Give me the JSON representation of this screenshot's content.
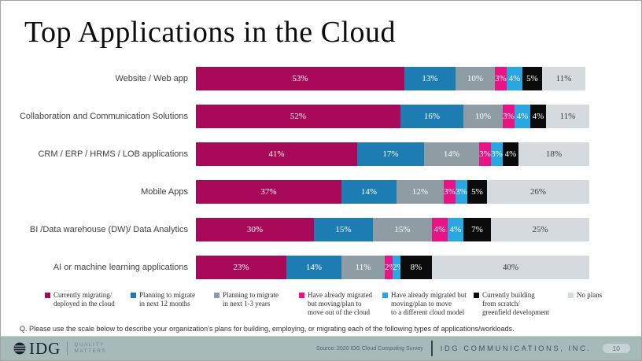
{
  "title": "Top Applications in the Cloud",
  "chart_data": {
    "type": "bar",
    "orientation": "horizontal",
    "stacked": true,
    "value_suffix": "%",
    "xlim": [
      0,
      100
    ],
    "grid": false,
    "legend_position": "bottom",
    "categories": [
      "Website / Web app",
      "Collaboration and Communication Solutions",
      "CRM / ERP / HRMS / LOB applications",
      "Mobile Apps",
      "BI /Data warehouse (DW)/ Data Analytics",
      "AI or machine learning applications"
    ],
    "series": [
      {
        "name": "Currently migrating/ deployed in the cloud",
        "color": "#a80959",
        "label_color": "#ffffff",
        "values": [
          53,
          52,
          41,
          37,
          30,
          23
        ]
      },
      {
        "name": "Planning to migrate in next 12 months",
        "color": "#1d7db2",
        "label_color": "#ffffff",
        "values": [
          13,
          16,
          17,
          14,
          15,
          14
        ]
      },
      {
        "name": "Planning to migrate in next 1-3 years",
        "color": "#8e9ca4",
        "label_color": "#ffffff",
        "values": [
          10,
          10,
          14,
          12,
          15,
          11
        ]
      },
      {
        "name": "Have already migrated but moving/plan to move out of the cloud",
        "color": "#e81384",
        "label_color": "#ffffff",
        "values": [
          3,
          3,
          3,
          3,
          4,
          2
        ]
      },
      {
        "name": "Have already migrated but moving/plan to move to a different cloud model",
        "color": "#2aa6e0",
        "label_color": "#ffffff",
        "values": [
          4,
          4,
          3,
          3,
          4,
          2
        ]
      },
      {
        "name": "Currently building from scratch/ greenfield development",
        "color": "#0b0b0b",
        "label_color": "#ffffff",
        "values": [
          5,
          4,
          4,
          5,
          7,
          8
        ]
      },
      {
        "name": "No plans",
        "color": "#d4dadd",
        "label_color": "#3d3d3d",
        "values": [
          11,
          11,
          18,
          26,
          25,
          40
        ]
      }
    ]
  },
  "legend": {
    "items": [
      {
        "lines": [
          "Currently migrating/",
          "deployed in the cloud"
        ],
        "color": "#a80959"
      },
      {
        "lines": [
          "Planning to migrate",
          "in next 12 months"
        ],
        "color": "#1d7db2"
      },
      {
        "lines": [
          "Planning to migrate",
          "in next 1-3 years"
        ],
        "color": "#8e9ca4"
      },
      {
        "lines": [
          "Have already migrated",
          "but moving/plan to",
          "move out of the cloud"
        ],
        "color": "#e81384"
      },
      {
        "lines": [
          "Have already migrated but",
          "moving/plan to move",
          "to a different cloud model"
        ],
        "color": "#2aa6e0"
      },
      {
        "lines": [
          "Currently building",
          "from scratch/",
          "greenfield development"
        ],
        "color": "#0b0b0b"
      },
      {
        "lines": [
          "No plans"
        ],
        "color": "#d4dadd"
      }
    ]
  },
  "question": "Q. Please use the scale below to describe your organization's plans for building, employing, or migrating each of the following types of applications/workloads.",
  "footer": {
    "brand": "IDG",
    "tagline_line1": "QUALITY",
    "tagline_line2": "MATTERS",
    "source": "Source: 2020 IDG Cloud Computing Survey",
    "company": "IDG COMMUNICATIONS, INC.",
    "page": "10"
  }
}
